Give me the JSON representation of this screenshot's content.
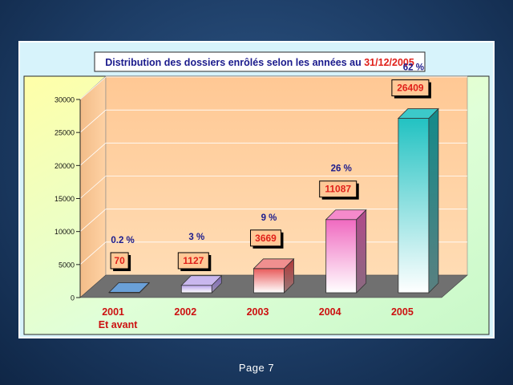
{
  "chart_data": {
    "type": "bar",
    "title": "Distribution des dossiers enrôlés selon les années au",
    "title_date": "31/12/2005",
    "categories": [
      "2001",
      "2002",
      "2003",
      "2004",
      "2005"
    ],
    "category_sublabels": [
      "Et avant",
      "",
      "",
      "",
      ""
    ],
    "values": [
      70,
      1127,
      3669,
      11087,
      26409
    ],
    "value_labels": [
      "70",
      "1127",
      "3669",
      "11087",
      "26409"
    ],
    "percent_labels": [
      "0.2 %",
      "3 %",
      "9 %",
      "26 %",
      "62 %"
    ],
    "y_ticks": [
      "0",
      "5000",
      "10000",
      "15000",
      "20000",
      "25000",
      "30000"
    ],
    "ylim": [
      0,
      30000
    ],
    "grid": true,
    "legend": "none"
  },
  "colors": {
    "title_text": "#1a1a8c",
    "title_date": "#e0201a",
    "category_label": "#cc1010",
    "percent_label": "#1a1a8c",
    "value_label": "#e0201a",
    "value_box": "#ffc896",
    "back_wall": "#ffcc99",
    "floor": "#707070",
    "bar_tops": [
      "#6aa0d8",
      "#c9b7ee",
      "#f08f8f",
      "#f58acb",
      "#3cc9c9"
    ]
  },
  "footer": {
    "page_label": "Page 7"
  }
}
